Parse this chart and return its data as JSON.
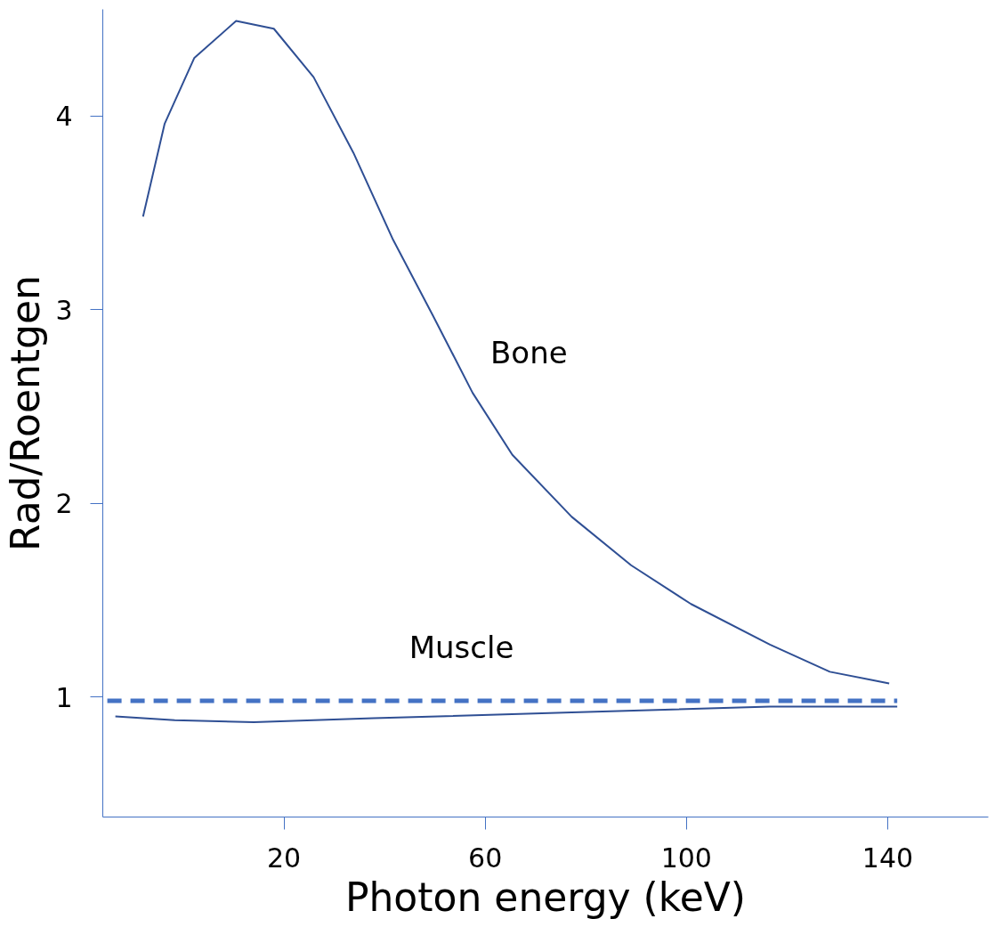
{
  "chart_data": {
    "type": "line",
    "xlabel": "Photon energy (keV)",
    "ylabel": "Rad/Roentgen",
    "xlim": [
      -16,
      160
    ],
    "ylim": [
      0.38,
      4.55
    ],
    "xticks": [
      20,
      60,
      100,
      140
    ],
    "yticks": [
      1,
      2,
      3,
      4
    ],
    "grid": false,
    "marker": "none",
    "series": [
      {
        "name": "Bone",
        "color": "#2f4f94",
        "line_style": "solid",
        "x": [
          -8,
          -3.7,
          2.2,
          10.5,
          18,
          25.9,
          33.8,
          41.7,
          49.6,
          57.5,
          65.4,
          77.2,
          89,
          100.9,
          116.6,
          128.5,
          140.3
        ],
        "values": [
          3.48,
          3.96,
          4.3,
          4.49,
          4.45,
          4.2,
          3.81,
          3.36,
          2.97,
          2.57,
          2.25,
          1.93,
          1.68,
          1.48,
          1.27,
          1.13,
          1.07
        ]
      },
      {
        "name": "Muscle",
        "color": "#2f4f94",
        "line_style": "solid",
        "x": [
          -13.5,
          -1.7,
          14,
          37.8,
          77.2,
          116.6,
          141.9
        ],
        "values": [
          0.9,
          0.88,
          0.87,
          0.89,
          0.92,
          0.95,
          0.95
        ]
      },
      {
        "color": "#4472c4",
        "line_style": "dashed",
        "x": [
          -15.1,
          141.9
        ],
        "values": [
          0.98,
          0.98
        ]
      }
    ]
  }
}
